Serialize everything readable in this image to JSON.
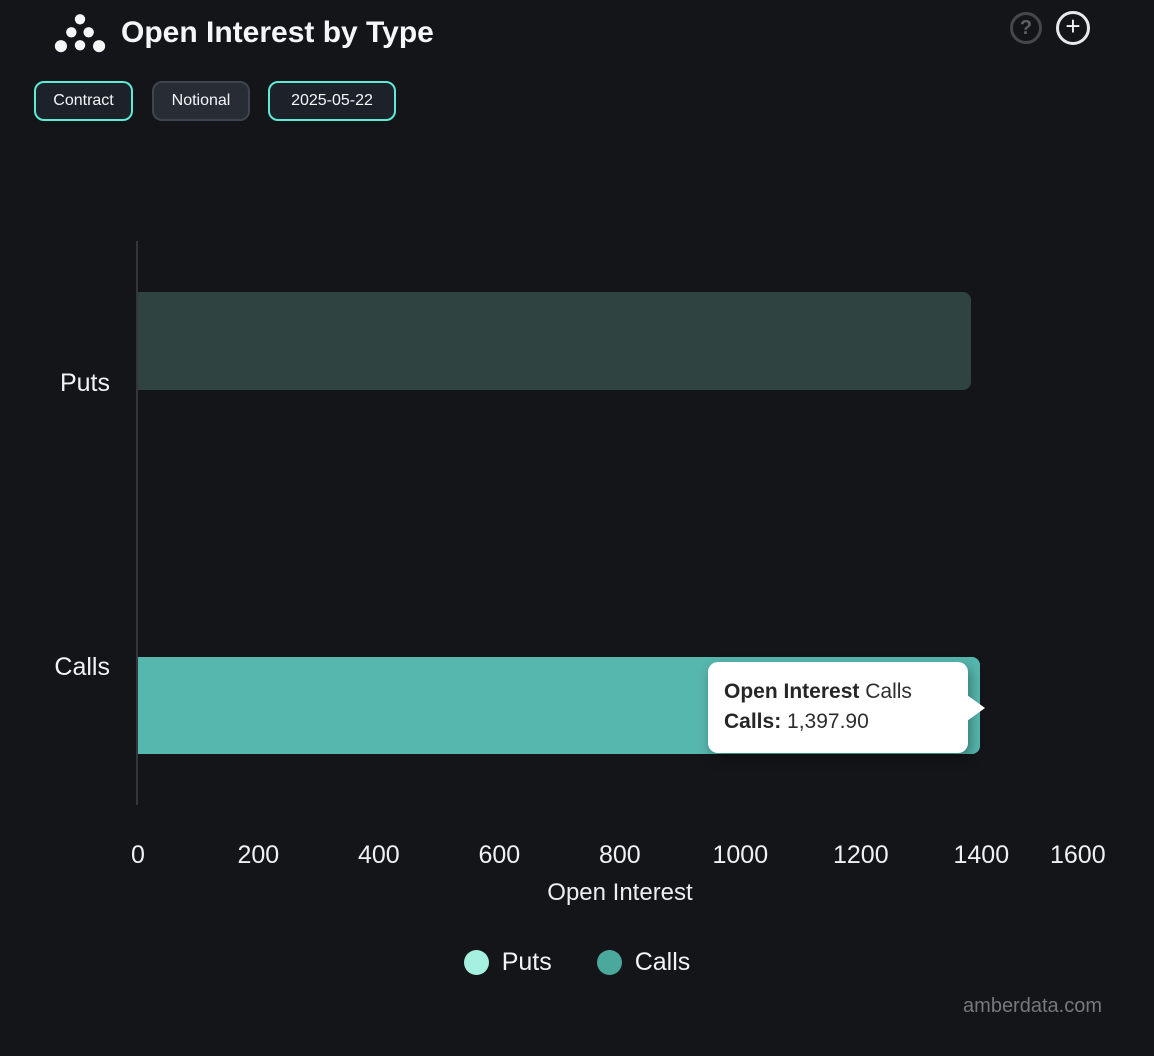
{
  "header": {
    "title": "Open Interest by Type",
    "help_button": "?",
    "add_button": "+"
  },
  "controls": {
    "contract_label": "Contract",
    "notional_label": "Notional",
    "date_label": "2025-05-22"
  },
  "chart_data": {
    "type": "bar",
    "orientation": "horizontal",
    "title": "Open Interest by Type",
    "xlabel": "Open Interest",
    "ylabel": "",
    "categories": [
      "Puts",
      "Calls"
    ],
    "values": [
      1382,
      1397.9
    ],
    "xlim": [
      0,
      1600
    ],
    "x_ticks": [
      0,
      200,
      400,
      600,
      800,
      1000,
      1200,
      1400,
      1600
    ],
    "grid": false,
    "legend_position": "bottom",
    "bar_colors": {
      "puts_dimmed": "#2f4440",
      "calls_highlight": "#56b7ae"
    }
  },
  "legend": {
    "items": [
      {
        "label": "Puts",
        "color": "#a5f0de"
      },
      {
        "label": "Calls",
        "color": "#4ba89d"
      }
    ]
  },
  "tooltip": {
    "title_bold": "Open Interest",
    "title_rest": "Calls",
    "row_label": "Calls:",
    "row_value": "1,397.90"
  },
  "watermark": "amberdata.com",
  "colors": {
    "background": "#141518",
    "accent_teal": "#5eead4",
    "axis_line": "#33363c",
    "tooltip_bg": "#ffffff"
  }
}
